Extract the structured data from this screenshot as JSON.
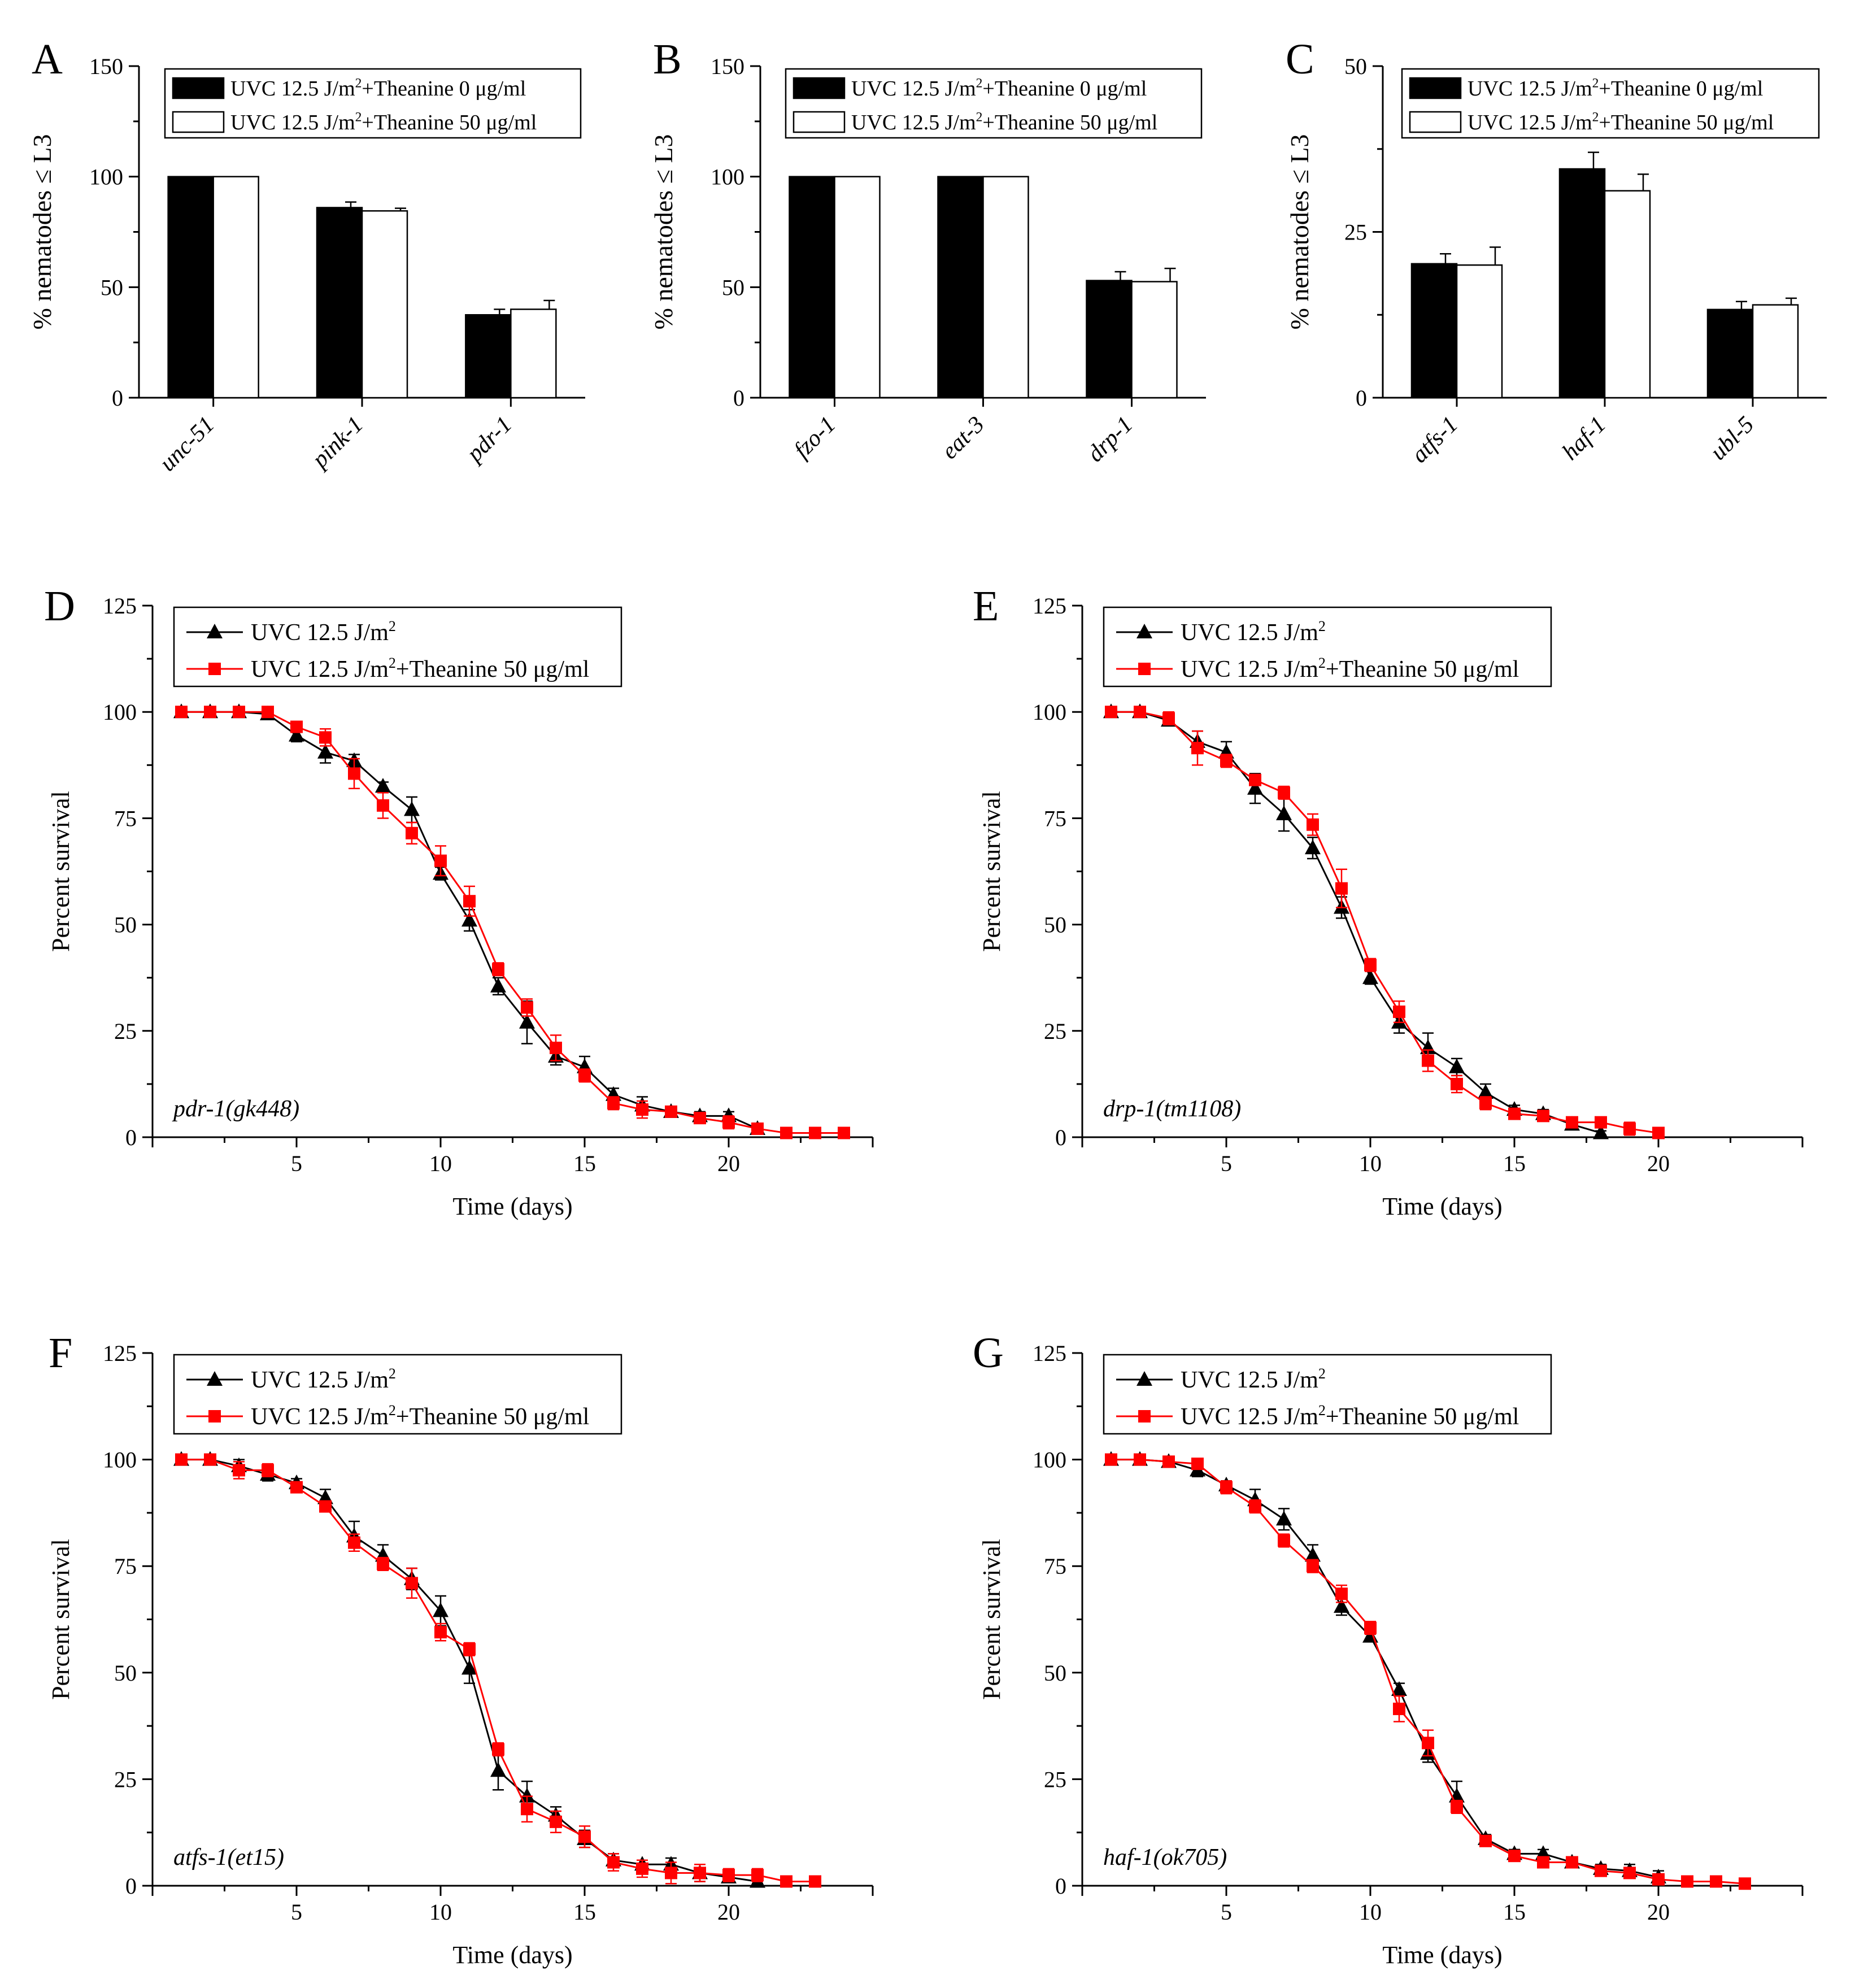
{
  "chart_data": [
    {
      "type": "bar",
      "panel_label": "A",
      "ylabel": "% nematodes ≤ L3",
      "ylim": [
        0,
        150
      ],
      "yticks": [
        0,
        50,
        100,
        150
      ],
      "categories": [
        "unc-51",
        "pink-1",
        "pdr-1"
      ],
      "series": [
        {
          "name": "UVC 12.5 J/m2+Theanine  0 μg/ml",
          "fill": "#000000",
          "values": [
            100,
            86,
            37.5
          ],
          "errors": [
            0,
            2.5,
            2.5
          ]
        },
        {
          "name": "UVC 12.5 J/m2+Theanine 50 μg/ml",
          "fill": "#ffffff",
          "values": [
            100,
            84.5,
            40
          ],
          "errors": [
            0,
            1.2,
            4
          ]
        }
      ],
      "legend": {
        "position": "top-right",
        "items": [
          "UVC 12.5 J/m2+Theanine  0 μg/ml",
          "UVC 12.5 J/m2+Theanine 50 μg/ml"
        ]
      }
    },
    {
      "type": "bar",
      "panel_label": "B",
      "ylabel": "% nematodes ≤ L3",
      "ylim": [
        0,
        150
      ],
      "yticks": [
        0,
        50,
        100,
        150
      ],
      "categories": [
        "fzo-1",
        "eat-3",
        "drp-1"
      ],
      "series": [
        {
          "name": "UVC 12.5 J/m2+Theanine  0 μg/ml",
          "fill": "#000000",
          "values": [
            100,
            100,
            53
          ],
          "errors": [
            0,
            0,
            4
          ]
        },
        {
          "name": "UVC 12.5 J/m2+Theanine 50 μg/ml",
          "fill": "#ffffff",
          "values": [
            100,
            100,
            52.5
          ],
          "errors": [
            0,
            0,
            6
          ]
        }
      ],
      "legend": {
        "position": "top-right",
        "items": [
          "UVC 12.5 J/m2+Theanine  0 μg/ml",
          "UVC 12.5 J/m2+Theanine 50 μg/ml"
        ]
      }
    },
    {
      "type": "bar",
      "panel_label": "C",
      "ylabel": "% nematodes ≤ L3",
      "ylim": [
        0,
        50
      ],
      "yticks": [
        0,
        25,
        50
      ],
      "categories": [
        "atfs-1",
        "haf-1",
        "ubl-5"
      ],
      "series": [
        {
          "name": "UVC 12.5 J/m2+Theanine  0 μg/ml",
          "fill": "#000000",
          "values": [
            20.2,
            34.5,
            13.3
          ],
          "errors": [
            1.5,
            2.5,
            1.2
          ]
        },
        {
          "name": "UVC 12.5 J/m2+Theanine 50 μg/ml",
          "fill": "#ffffff",
          "values": [
            20,
            31.2,
            14
          ],
          "errors": [
            2.7,
            2.5,
            1
          ]
        }
      ],
      "legend": {
        "position": "top-right",
        "items": [
          "UVC 12.5 J/m2+Theanine  0 μg/ml",
          "UVC 12.5 J/m2+Theanine 50 μg/ml"
        ]
      }
    },
    {
      "type": "line",
      "panel_label": "D",
      "strain": "pdr-1(gk448)",
      "xlabel": "Time (days)",
      "ylabel": "Percent survival",
      "xlim": [
        0,
        25
      ],
      "ylim": [
        0,
        125
      ],
      "xticks": [
        5,
        10,
        15,
        20
      ],
      "yticks": [
        0,
        25,
        50,
        75,
        100,
        125
      ],
      "legend": {
        "position": "top-left"
      },
      "series": [
        {
          "name": "UVC 12.5 J/m2",
          "color": "#000000",
          "marker": "triangle",
          "x": [
            1,
            2,
            3,
            4,
            5,
            6,
            7,
            8,
            9,
            10,
            11,
            12,
            13,
            14,
            15,
            16,
            17,
            18,
            19,
            20,
            21
          ],
          "y": [
            100,
            100,
            100,
            99.5,
            94.5,
            90.5,
            88.5,
            82.5,
            77,
            62,
            51,
            35.5,
            27,
            19,
            16.5,
            10,
            7.5,
            6,
            5,
            5,
            2
          ],
          "err": [
            0,
            0,
            0,
            1,
            1.5,
            2.5,
            1.5,
            1,
            3,
            1.5,
            2.5,
            2,
            5,
            2,
            2.5,
            1.5,
            2,
            1,
            1,
            1,
            1
          ]
        },
        {
          "name": "UVC 12.5 J/m2+Theanine 50 μg/ml",
          "color": "#ff0000",
          "marker": "square",
          "x": [
            1,
            2,
            3,
            4,
            5,
            6,
            7,
            8,
            9,
            10,
            11,
            12,
            13,
            14,
            15,
            16,
            17,
            18,
            19,
            20,
            21,
            22,
            23,
            24
          ],
          "y": [
            100,
            100,
            100,
            100,
            96.5,
            94,
            85.5,
            78,
            71.5,
            65,
            55.5,
            39.5,
            30.5,
            21,
            14.5,
            8,
            6.5,
            6,
            4.5,
            3.5,
            2,
            1,
            1,
            1
          ],
          "err": [
            0,
            0,
            0,
            0,
            1,
            2,
            3.5,
            3,
            2.5,
            3.5,
            3.5,
            1.5,
            2,
            3,
            1.5,
            1.5,
            2,
            1,
            1,
            1.5,
            1,
            0.5,
            0.5,
            0.5
          ]
        }
      ]
    },
    {
      "type": "line",
      "panel_label": "E",
      "strain": "drp-1(tm1108)",
      "xlabel": "Time (days)",
      "ylabel": "Percent survival",
      "xlim": [
        0,
        25
      ],
      "ylim": [
        0,
        125
      ],
      "xticks": [
        5,
        10,
        15,
        20
      ],
      "yticks": [
        0,
        25,
        50,
        75,
        100,
        125
      ],
      "legend": {
        "position": "top-left"
      },
      "series": [
        {
          "name": "UVC 12.5 J/m2",
          "color": "#000000",
          "marker": "triangle",
          "x": [
            1,
            2,
            3,
            4,
            5,
            6,
            7,
            8,
            9,
            10,
            11,
            12,
            13,
            14,
            15,
            16,
            17,
            18
          ],
          "y": [
            100,
            100,
            98,
            93,
            90.5,
            82,
            76,
            68,
            54,
            37.5,
            27,
            21,
            16.5,
            10.5,
            6.5,
            5.5,
            3,
            1
          ],
          "err": [
            0,
            0,
            1,
            2.5,
            2.5,
            3.5,
            4,
            2.5,
            2.5,
            1.5,
            2.5,
            3.5,
            2,
            2,
            1,
            1,
            1,
            0.5
          ]
        },
        {
          "name": "UVC 12.5 J/m2+Theanine 50 μg/ml",
          "color": "#ff0000",
          "marker": "square",
          "x": [
            1,
            2,
            3,
            4,
            5,
            6,
            7,
            8,
            9,
            10,
            11,
            12,
            13,
            14,
            15,
            16,
            17,
            18,
            19,
            20
          ],
          "y": [
            100,
            100,
            98.5,
            91.5,
            88.5,
            84,
            81,
            73.5,
            58.5,
            40.5,
            29.5,
            18,
            12.5,
            8,
            5.5,
            5,
            3.5,
            3.5,
            2,
            1
          ],
          "err": [
            0,
            0,
            1.5,
            4,
            1.5,
            1,
            1.5,
            2.5,
            4.5,
            1.5,
            2.5,
            2.5,
            2,
            1.5,
            1,
            1,
            1,
            1,
            1.5,
            0.5
          ]
        }
      ]
    },
    {
      "type": "line",
      "panel_label": "F",
      "strain": "atfs-1(et15)",
      "xlabel": "Time (days)",
      "ylabel": "Percent survival",
      "xlim": [
        0,
        25
      ],
      "ylim": [
        0,
        125
      ],
      "xticks": [
        5,
        10,
        15,
        20
      ],
      "yticks": [
        0,
        25,
        50,
        75,
        100,
        125
      ],
      "legend": {
        "position": "top-left"
      },
      "series": [
        {
          "name": "UVC 12.5 J/m2",
          "color": "#000000",
          "marker": "triangle",
          "x": [
            1,
            2,
            3,
            4,
            5,
            6,
            7,
            8,
            9,
            10,
            11,
            12,
            13,
            14,
            15,
            16,
            17,
            18,
            19,
            20,
            21
          ],
          "y": [
            100,
            100,
            98.5,
            96.5,
            94.5,
            91,
            82,
            77.5,
            72,
            64.5,
            51,
            27,
            21,
            16.5,
            11,
            6,
            5,
            5,
            3,
            2,
            1
          ],
          "err": [
            0,
            0,
            1.5,
            1.5,
            1,
            2,
            3.5,
            2.5,
            2.5,
            3.5,
            3.5,
            4.5,
            3.5,
            2,
            2,
            1.5,
            1,
            1.5,
            2,
            1,
            0.5
          ]
        },
        {
          "name": "UVC 12.5 J/m2+Theanine 50 μg/ml",
          "color": "#ff0000",
          "marker": "square",
          "x": [
            1,
            2,
            3,
            4,
            5,
            6,
            7,
            8,
            9,
            10,
            11,
            12,
            13,
            14,
            15,
            16,
            17,
            18,
            19,
            20,
            21,
            22,
            23
          ],
          "y": [
            100,
            100,
            97.5,
            97.5,
            93.5,
            89,
            80.5,
            75.5,
            71,
            59.5,
            55.5,
            32,
            18,
            15,
            11.5,
            5.5,
            4,
            3,
            3,
            2.5,
            2.5,
            1,
            1
          ],
          "err": [
            0,
            0,
            2,
            1.5,
            1,
            1,
            2,
            1.5,
            3.5,
            2,
            1.5,
            1.5,
            3,
            2.5,
            2.5,
            2,
            2,
            2.5,
            2,
            1.5,
            1.5,
            0.5,
            0.5
          ]
        }
      ]
    },
    {
      "type": "line",
      "panel_label": "G",
      "strain": "haf-1(ok705)",
      "xlabel": "Time (days)",
      "ylabel": "Percent survival",
      "xlim": [
        0,
        25
      ],
      "ylim": [
        0,
        125
      ],
      "xticks": [
        5,
        10,
        15,
        20
      ],
      "yticks": [
        0,
        25,
        50,
        75,
        100,
        125
      ],
      "legend": {
        "position": "top-left"
      },
      "series": [
        {
          "name": "UVC 12.5 J/m2",
          "color": "#000000",
          "marker": "triangle",
          "x": [
            1,
            2,
            3,
            4,
            5,
            6,
            7,
            8,
            9,
            10,
            11,
            12,
            13,
            14,
            15,
            16,
            17,
            18,
            19,
            20
          ],
          "y": [
            100,
            100,
            99.5,
            97.5,
            94,
            90.5,
            86,
            77.5,
            65.5,
            58.5,
            46,
            31,
            21,
            11,
            7.5,
            7.5,
            5.5,
            4,
            3.5,
            2
          ],
          "err": [
            0,
            0,
            1,
            1.5,
            1,
            2.5,
            2.5,
            2.5,
            2,
            1,
            1.5,
            2,
            3.5,
            1,
            1,
            1,
            1,
            1,
            1.5,
            1.5
          ]
        },
        {
          "name": "UVC 12.5 J/m2+Theanine 50 μg/ml",
          "color": "#ff0000",
          "marker": "square",
          "x": [
            1,
            2,
            3,
            4,
            5,
            6,
            7,
            8,
            9,
            10,
            11,
            12,
            13,
            14,
            15,
            16,
            17,
            18,
            19,
            20,
            21,
            22,
            23
          ],
          "y": [
            100,
            100,
            99.5,
            99,
            93.5,
            89,
            81,
            75,
            68.5,
            60.5,
            41.5,
            33.5,
            18.5,
            10.5,
            7,
            5.5,
            5.5,
            3.5,
            3,
            1.5,
            1,
            1,
            0.5
          ],
          "err": [
            0,
            0,
            1,
            1,
            1.5,
            1.5,
            1.5,
            1.5,
            2,
            1.5,
            3,
            3,
            1.5,
            1,
            1,
            1,
            1,
            1,
            1,
            1,
            0.5,
            0.5,
            0.5
          ]
        }
      ]
    }
  ]
}
